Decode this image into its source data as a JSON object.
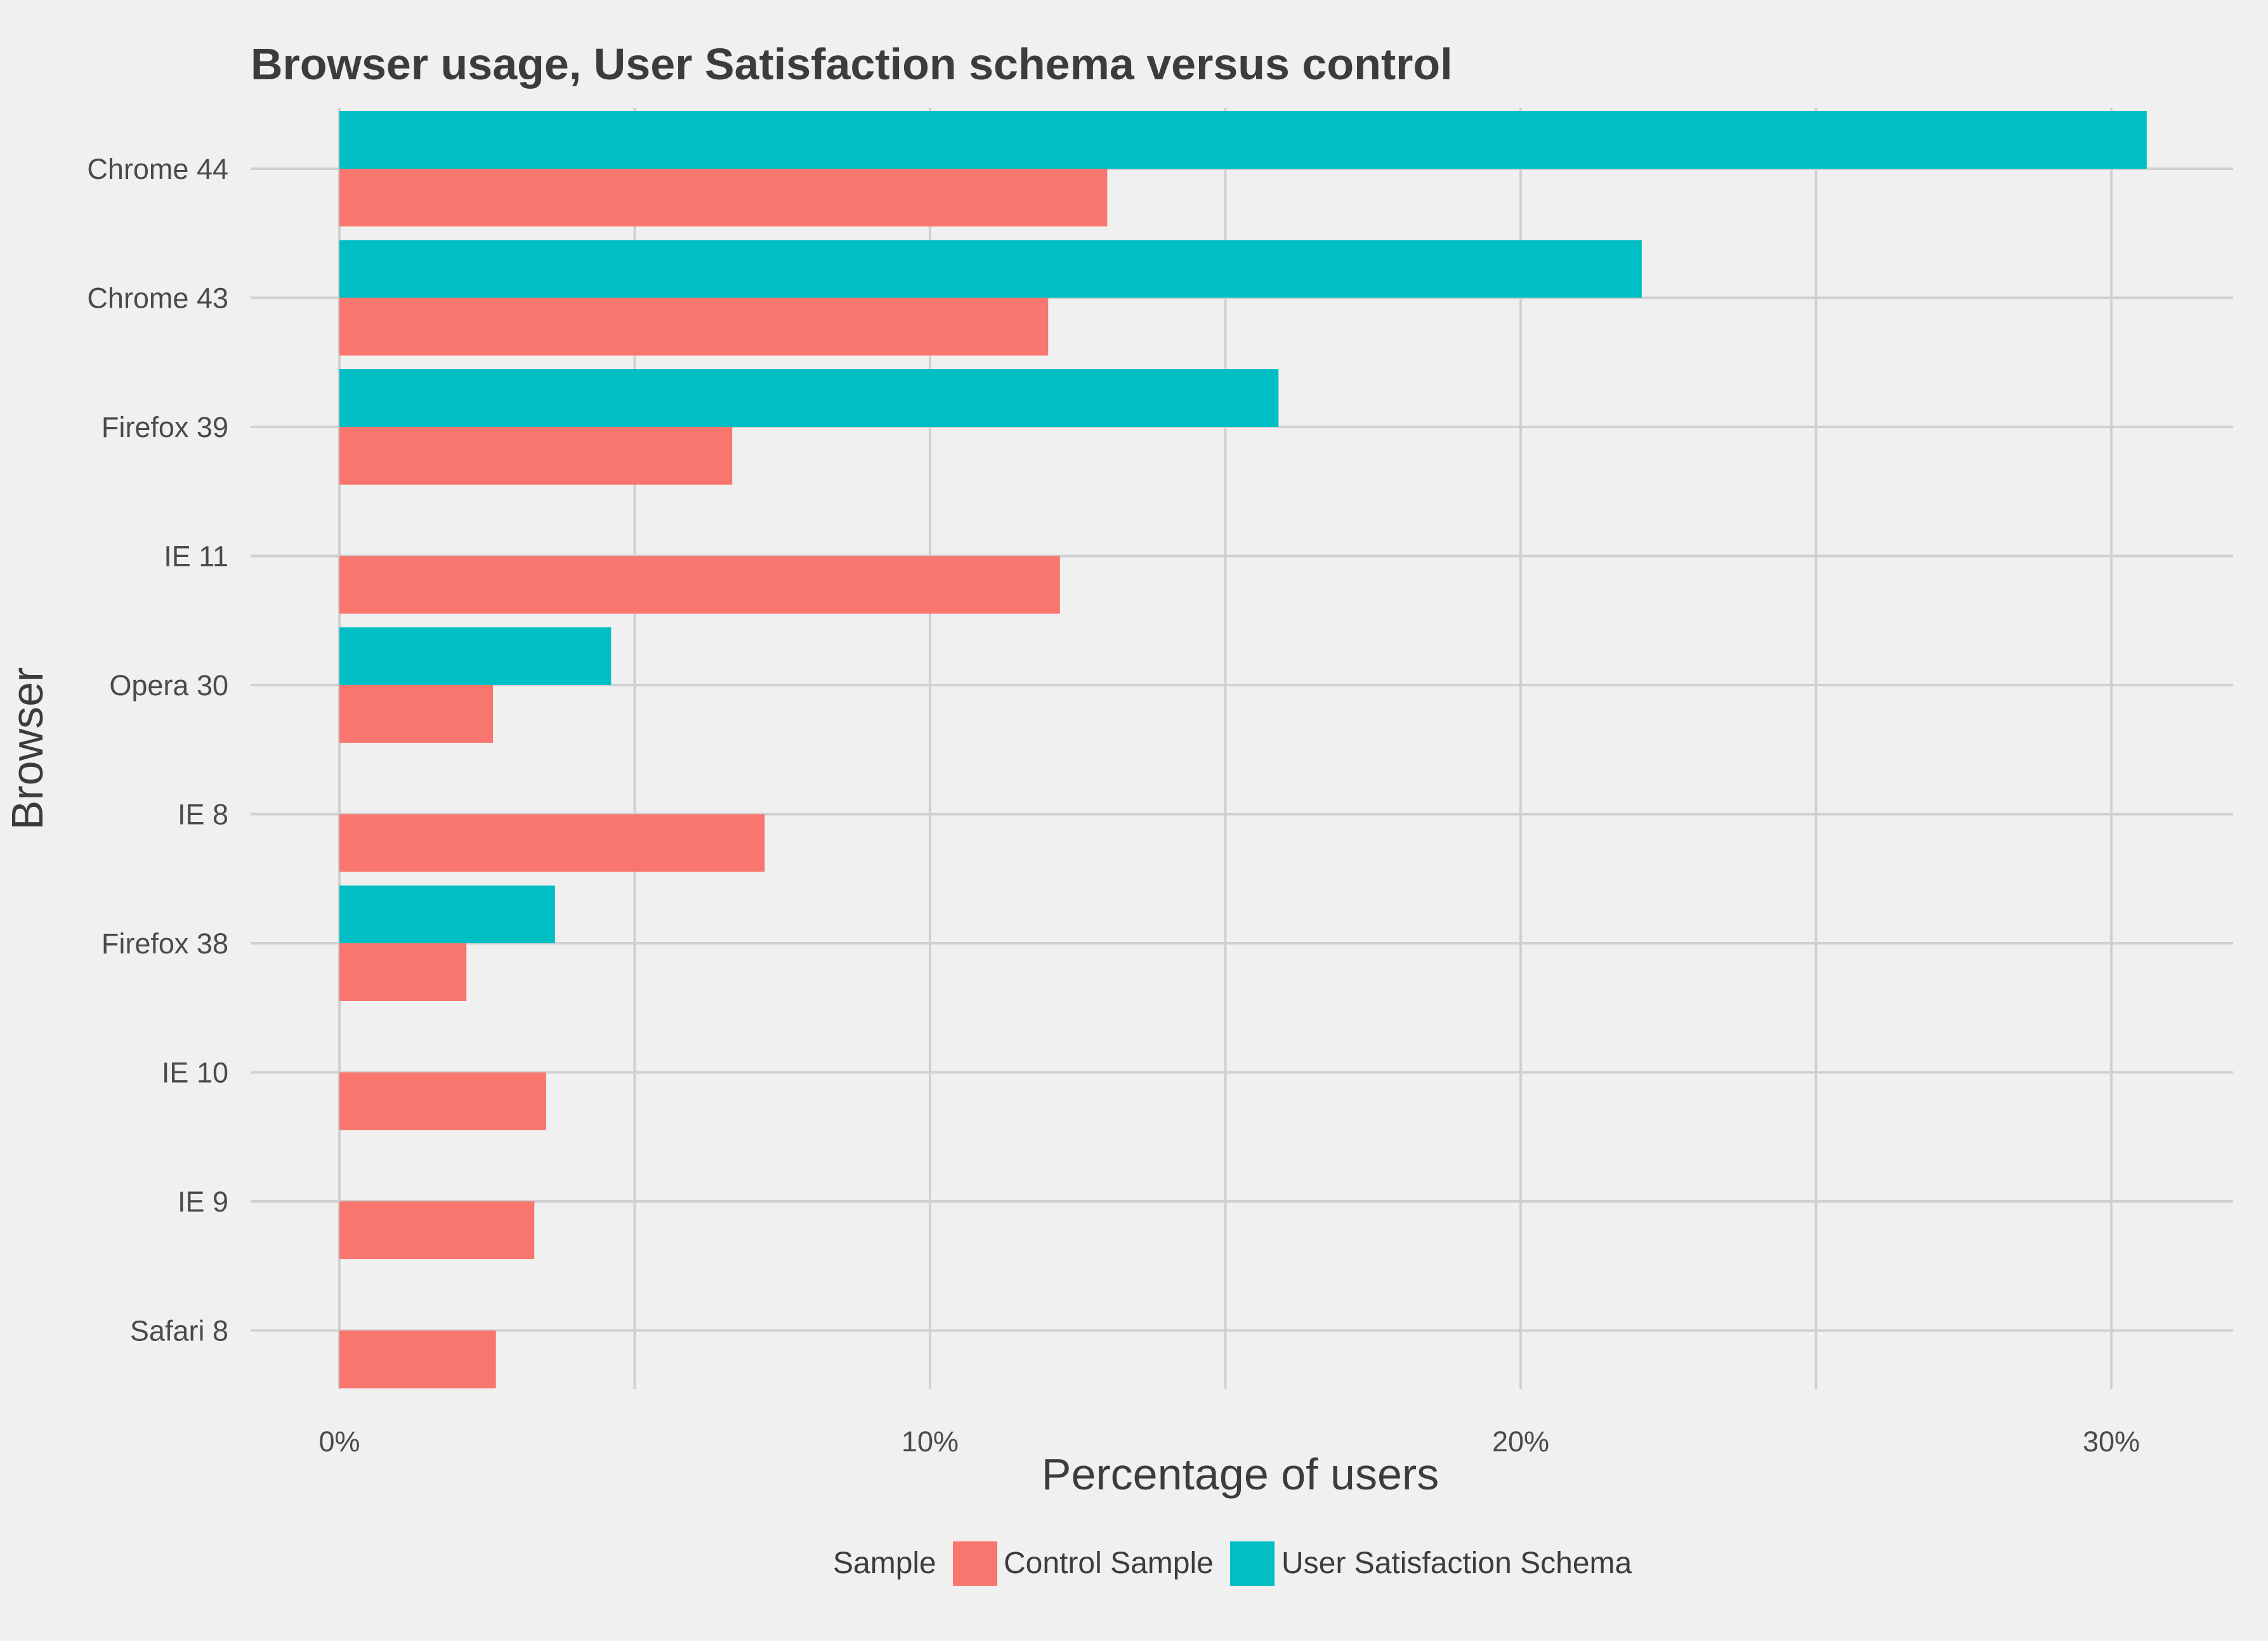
{
  "chart_data": {
    "type": "bar",
    "orientation": "horizontal",
    "title": "Browser usage, User Satisfaction schema versus control",
    "xlabel": "Percentage of users",
    "ylabel": "Browser",
    "categories": [
      "Chrome 44",
      "Chrome 43",
      "Firefox 39",
      "IE 11",
      "Opera 30",
      "IE 8",
      "Firefox 38",
      "IE 10",
      "IE 9",
      "Safari 8"
    ],
    "series": [
      {
        "name": "Control Sample",
        "color": "#f8766d",
        "values": [
          13.0,
          12.0,
          6.65,
          12.2,
          2.6,
          7.2,
          2.15,
          3.5,
          3.3,
          2.65
        ]
      },
      {
        "name": "User Satisfaction Schema",
        "color": "#00bfc4",
        "values": [
          30.6,
          22.05,
          15.9,
          null,
          4.6,
          null,
          3.65,
          null,
          null,
          null
        ]
      }
    ],
    "xlim": [
      0,
      32
    ],
    "xticks": [
      0,
      10,
      20,
      30
    ],
    "xtick_labels": [
      "0%",
      "10%",
      "20%",
      "30%"
    ],
    "grid": true,
    "legend": {
      "title": "Sample",
      "placement": "bottom"
    }
  }
}
